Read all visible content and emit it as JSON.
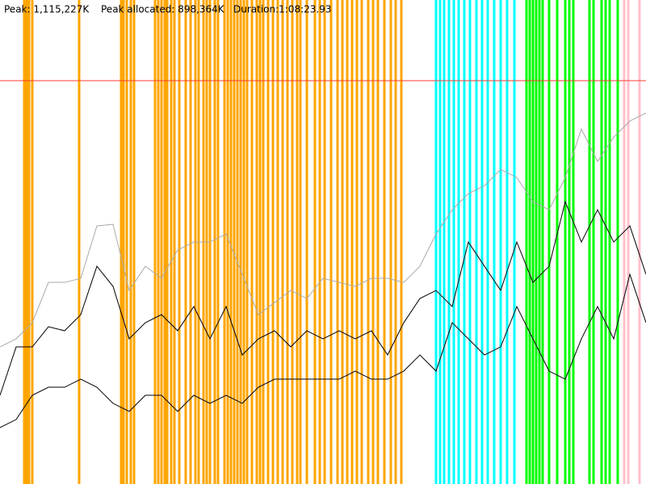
{
  "chart_data": {
    "type": "line",
    "header": {
      "peak": "Peak: 1,115,227K",
      "peak_allocated": "Peak allocated: 898,364K",
      "duration": "Duration:1:08:23.93"
    },
    "peak": 1115227,
    "peak_color": "#ff3b30",
    "xlim": [
      0,
      4000
    ],
    "ylim": [
      0,
      1338272
    ],
    "x": [
      0,
      100,
      200,
      300,
      400,
      500,
      600,
      700,
      800,
      900,
      1000,
      1100,
      1200,
      1300,
      1400,
      1500,
      1600,
      1700,
      1800,
      1900,
      2000,
      2100,
      2200,
      2300,
      2400,
      2500,
      2600,
      2700,
      2800,
      2900,
      3000,
      3100,
      3200,
      3300,
      3400,
      3500,
      3600,
      3700,
      3800,
      3900,
      4000
    ],
    "series": [
      {
        "color": "#aaaaaa",
        "values": [
          379100,
          401400,
          446000,
          557500,
          557500,
          568650,
          713600,
          718060,
          535200,
          602100,
          568650,
          646700,
          669000,
          669000,
          691300,
          579800,
          468300,
          501750,
          535200,
          512900,
          568650,
          557500,
          546350,
          568650,
          568650,
          557500,
          602100,
          691300,
          758200,
          802800,
          825100,
          869700,
          847400,
          780500,
          758200,
          847400,
          981200,
          892000,
          958900,
          1003500,
          1025800
        ]
      },
      {
        "color": "#000000",
        "values": [
          245300,
          379100,
          379100,
          434850,
          423700,
          468300,
          602100,
          546350,
          401400,
          446000,
          468300,
          423700,
          490600,
          401400,
          490600,
          356800,
          401400,
          423700,
          379100,
          423700,
          401400,
          423700,
          401400,
          423700,
          356800,
          446000,
          512900,
          535200,
          490600,
          669000,
          602100,
          535200,
          669000,
          557500,
          602100,
          780500,
          669000,
          758200,
          669000,
          713600,
          579800
        ]
      },
      {
        "color": "#000000",
        "values": [
          156100,
          178400,
          245300,
          267600,
          267600,
          289900,
          267600,
          223000,
          200700,
          245300,
          245300,
          200700,
          245300,
          223000,
          245300,
          223000,
          267600,
          289900,
          289900,
          289900,
          289900,
          289900,
          312200,
          289900,
          289900,
          312200,
          356800,
          312200,
          446000,
          401400,
          356800,
          379100,
          490600,
          401400,
          312200,
          289900,
          401400,
          490600,
          401400,
          579800,
          446000
        ]
      }
    ],
    "events": [
      {
        "color": "#ffa500",
        "x": [
          150,
          165,
          180,
          200,
          490,
          750,
          765,
          785,
          810,
          830,
          960,
          980,
          1000,
          1020,
          1035,
          1060,
          1080,
          1110,
          1150,
          1180,
          1210,
          1230,
          1260,
          1280,
          1300,
          1330,
          1350,
          1390,
          1410,
          1430,
          1450,
          1470,
          1490,
          1510,
          1530,
          1560,
          1590,
          1610,
          1630,
          1660,
          1690,
          1720,
          1750,
          1780,
          1810,
          1840,
          1860,
          1900,
          1950,
          1980,
          2010,
          2050,
          2090,
          2120,
          2150,
          2180,
          2210,
          2240,
          2280,
          2310,
          2340,
          2380,
          2420,
          2450,
          2485
        ]
      },
      {
        "color": "#00ffff",
        "x": [
          2700,
          2725,
          2750,
          2780,
          2810,
          2840,
          2875,
          2910,
          2950,
          2985,
          3020,
          3060,
          3100,
          3140,
          3185
        ]
      },
      {
        "color": "#00ff00",
        "x": [
          3260,
          3280,
          3300,
          3320,
          3340,
          3360,
          3400,
          3450,
          3500,
          3525,
          3550,
          3650,
          3675,
          3725,
          3750,
          3775,
          3825
        ]
      },
      {
        "color": "#ffc0cb",
        "x": [
          3865,
          3890,
          3960
        ]
      }
    ]
  }
}
